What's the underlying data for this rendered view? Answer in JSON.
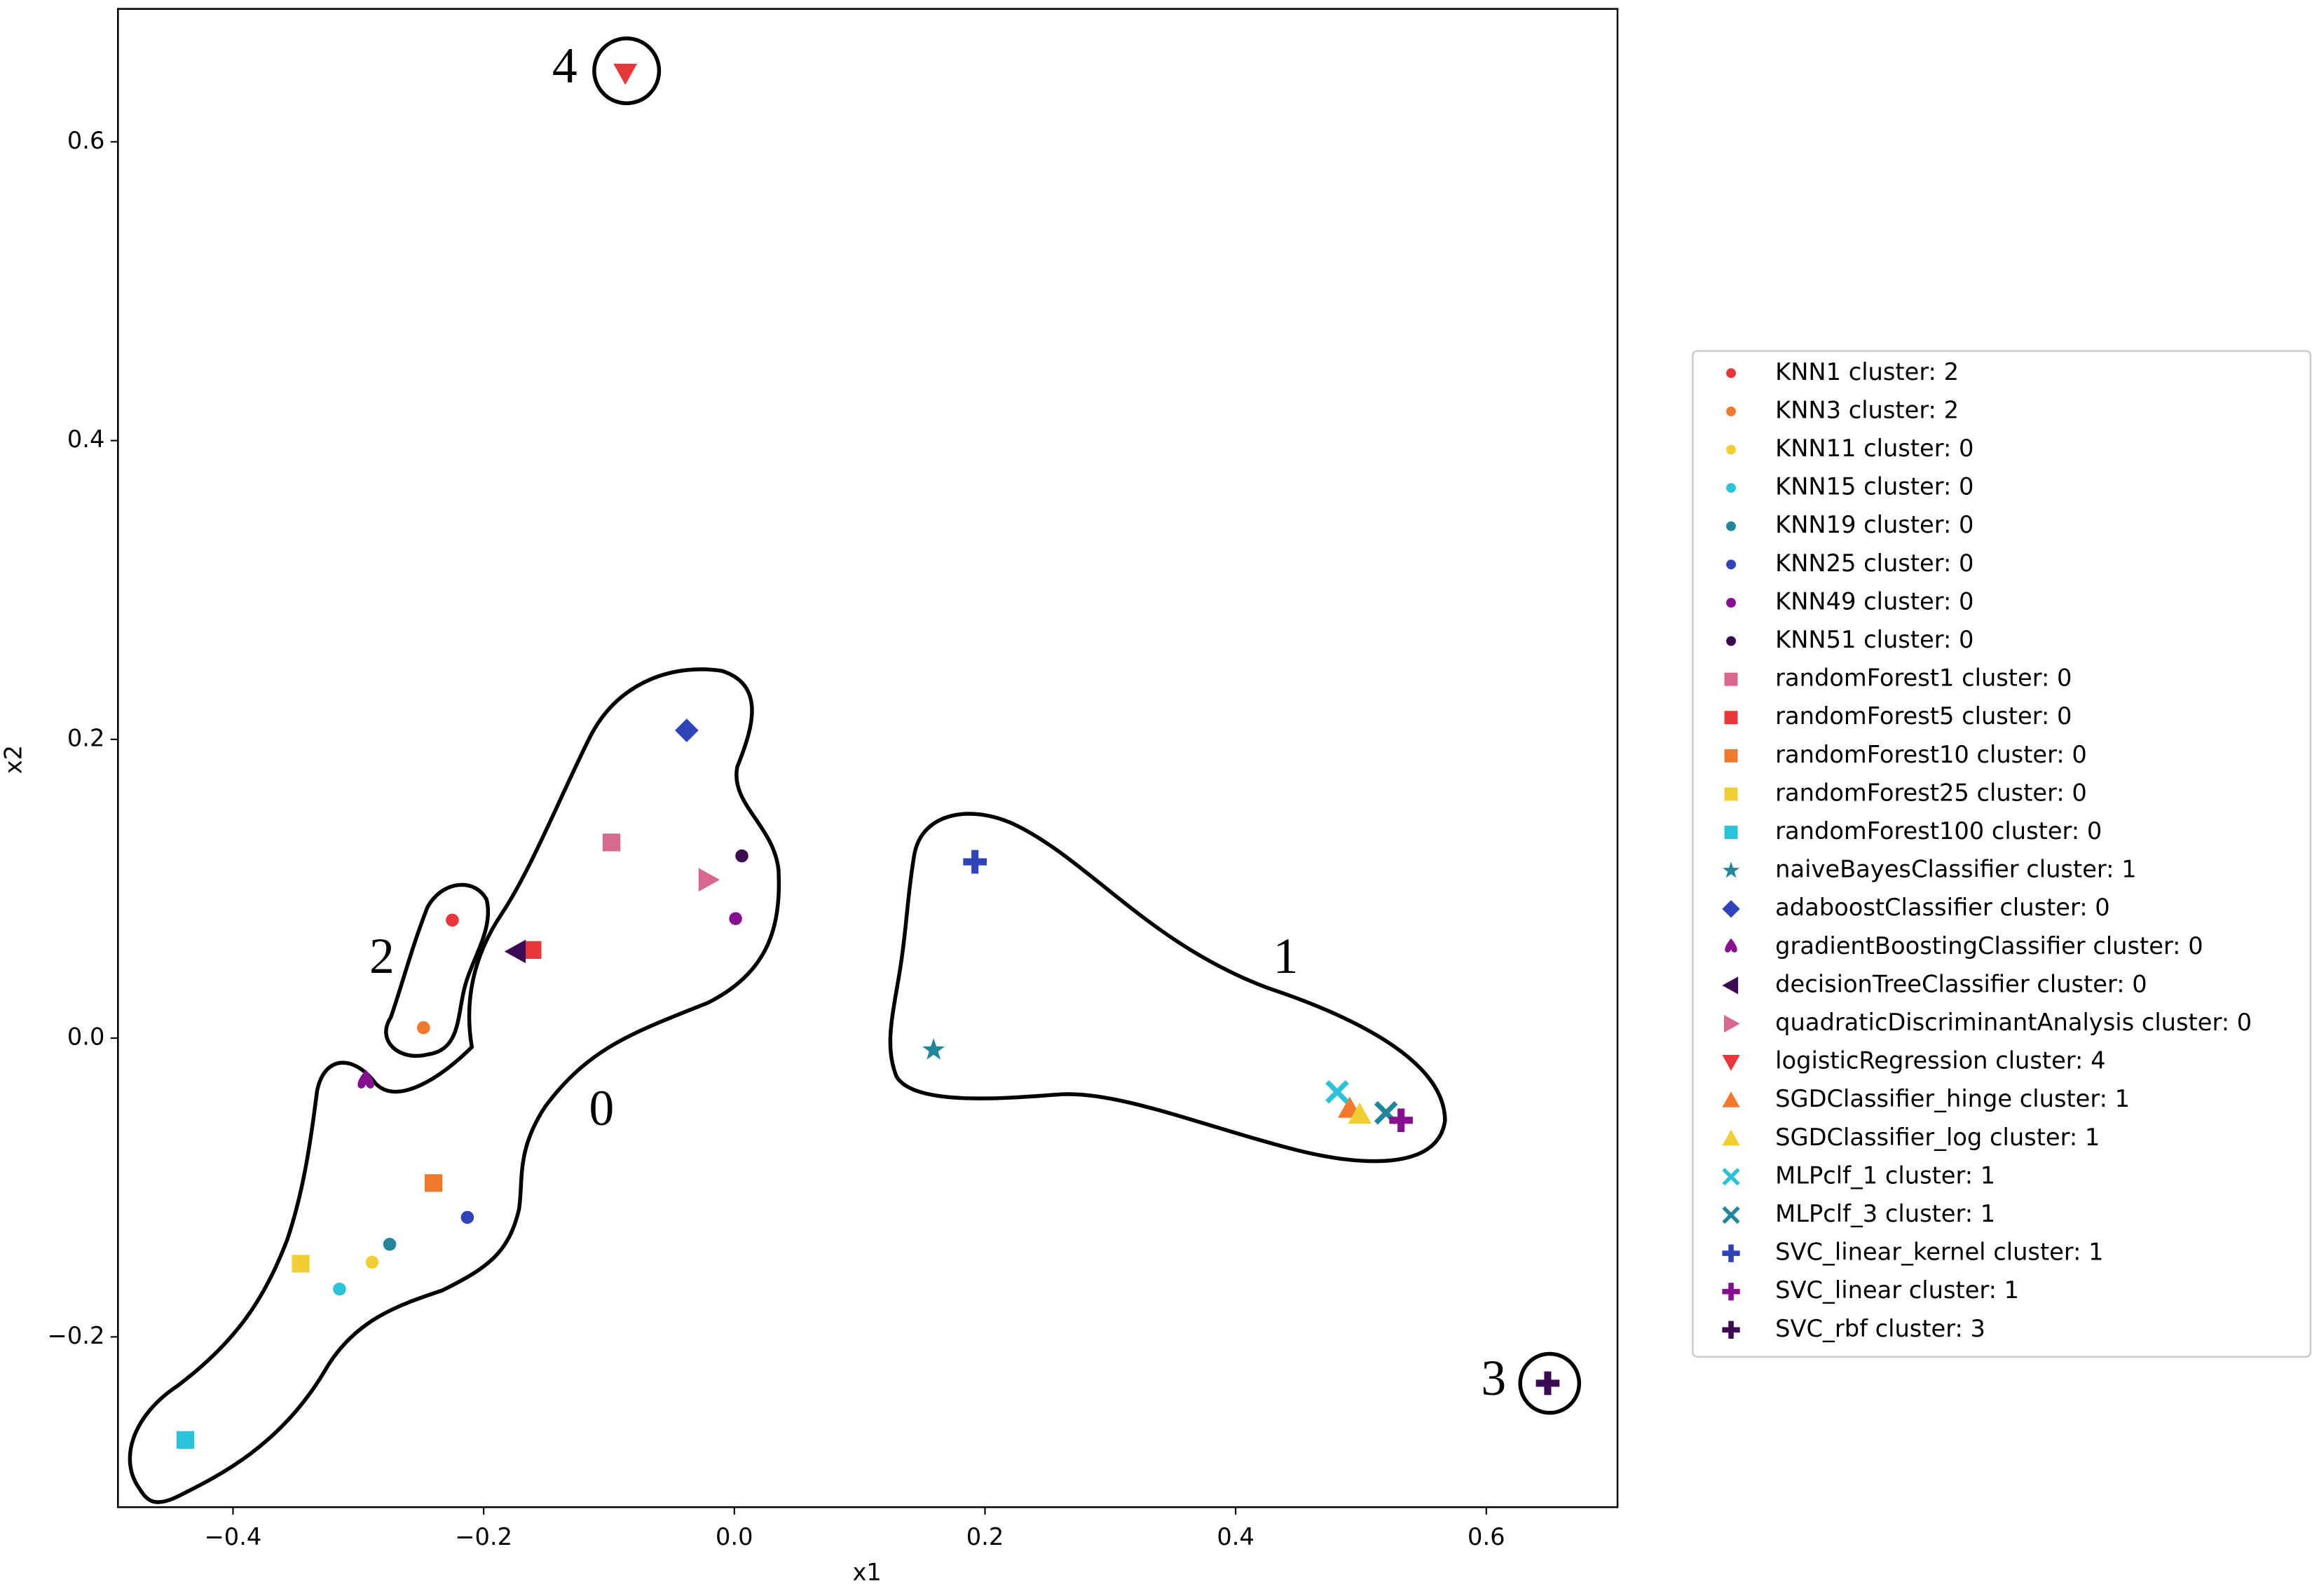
{
  "chart_data": {
    "type": "scatter",
    "xlabel": "x1",
    "ylabel": "x2",
    "xlim": [
      -0.4918,
      0.7047
    ],
    "ylim": [
      -0.314,
      0.689
    ],
    "xticks": [
      {
        "value": -0.4,
        "label": "−0.4"
      },
      {
        "value": -0.2,
        "label": "−0.2"
      },
      {
        "value": 0,
        "label": "0.0"
      },
      0.2,
      0.4,
      0.6
    ],
    "yticks": [
      {
        "value": -0.2,
        "label": "−0.2"
      },
      {
        "value": 0,
        "label": "0.0"
      },
      0.2,
      0.4,
      0.6
    ],
    "grid": false,
    "legend": "right",
    "annotations": [
      "0",
      "1",
      "2",
      "3",
      "4"
    ],
    "series": [
      {
        "name": "KNN1 cluster: 2",
        "color": "#e8363a",
        "marker": "o",
        "x": [
          -0.225
        ],
        "values": [
          0.079
        ]
      },
      {
        "name": "KNN3 cluster: 2",
        "color": "#ef7a2e",
        "marker": "o",
        "x": [
          -0.248
        ],
        "values": [
          0.007
        ]
      },
      {
        "name": "KNN11 cluster: 0",
        "color": "#f1cf33",
        "marker": "o",
        "x": [
          -0.289
        ],
        "values": [
          -0.15
        ]
      },
      {
        "name": "KNN15 cluster: 0",
        "color": "#2bc3d8",
        "marker": "o",
        "x": [
          -0.315
        ],
        "values": [
          -0.168
        ]
      },
      {
        "name": "KNN19 cluster: 0",
        "color": "#23879b",
        "marker": "o",
        "x": [
          -0.275
        ],
        "values": [
          -0.138
        ]
      },
      {
        "name": "KNN25 cluster: 0",
        "color": "#2f44b8",
        "marker": "o",
        "x": [
          -0.213
        ],
        "values": [
          -0.12
        ]
      },
      {
        "name": "KNN49 cluster: 0",
        "color": "#86108f",
        "marker": "o",
        "x": [
          0.001
        ],
        "values": [
          0.08
        ]
      },
      {
        "name": "KNN51 cluster: 0",
        "color": "#3c0a52",
        "marker": "o",
        "x": [
          0.006
        ],
        "values": [
          0.122
        ]
      },
      {
        "name": "randomForest1 cluster: 0",
        "color": "#d8688e",
        "marker": "s",
        "x": [
          -0.098
        ],
        "values": [
          0.131
        ]
      },
      {
        "name": "randomForest5 cluster: 0",
        "color": "#e8363a",
        "marker": "s",
        "x": [
          -0.161
        ],
        "values": [
          0.059
        ]
      },
      {
        "name": "randomForest10 cluster: 0",
        "color": "#ef7a2e",
        "marker": "s",
        "x": [
          -0.24
        ],
        "values": [
          -0.097
        ]
      },
      {
        "name": "randomForest25 cluster: 0",
        "color": "#f1cf33",
        "marker": "s",
        "x": [
          -0.346
        ],
        "values": [
          -0.151
        ]
      },
      {
        "name": "randomForest100 cluster: 0",
        "color": "#2bc3d8",
        "marker": "s",
        "x": [
          -0.438
        ],
        "values": [
          -0.269
        ]
      },
      {
        "name": "naiveBayesClassifier cluster: 1",
        "color": "#23879b",
        "marker": "*",
        "x": [
          0.159
        ],
        "values": [
          -0.008
        ]
      },
      {
        "name": "adaboostClassifier cluster: 0",
        "color": "#2f44b8",
        "marker": "D",
        "x": [
          -0.038
        ],
        "values": [
          0.206
        ]
      },
      {
        "name": "gradientBoostingClassifier cluster: 0",
        "color": "#86108f",
        "marker": "heart",
        "x": [
          -0.294
        ],
        "values": [
          -0.029
        ]
      },
      {
        "name": "decisionTreeClassifier cluster: 0",
        "color": "#3c0a52",
        "marker": "<",
        "x": [
          -0.174
        ],
        "values": [
          0.058
        ]
      },
      {
        "name": "quadraticDiscriminantAnalysis cluster: 0",
        "color": "#d8688e",
        "marker": ">",
        "x": [
          -0.021
        ],
        "values": [
          0.106
        ]
      },
      {
        "name": "logisticRegression cluster: 4",
        "color": "#e8363a",
        "marker": "v",
        "x": [
          -0.087
        ],
        "values": [
          0.646
        ]
      },
      {
        "name": "SGDClassifier_hinge cluster: 1",
        "color": "#ef7a2e",
        "marker": "^",
        "x": [
          0.491
        ],
        "values": [
          -0.047
        ]
      },
      {
        "name": "SGDClassifier_log cluster: 1",
        "color": "#f1cf33",
        "marker": "^",
        "x": [
          0.499
        ],
        "values": [
          -0.051
        ]
      },
      {
        "name": "MLPclf_1 cluster: 1",
        "color": "#2bc3d8",
        "marker": "X",
        "x": [
          0.481
        ],
        "values": [
          -0.036
        ]
      },
      {
        "name": "MLPclf_3 cluster: 1",
        "color": "#23879b",
        "marker": "X",
        "x": [
          0.52
        ],
        "values": [
          -0.05
        ]
      },
      {
        "name": "SVC_linear_kernel cluster: 1",
        "color": "#2f44b8",
        "marker": "P",
        "x": [
          0.192
        ],
        "values": [
          0.118
        ]
      },
      {
        "name": "SVC_linear cluster: 1",
        "color": "#86108f",
        "marker": "P",
        "x": [
          0.532
        ],
        "values": [
          -0.055
        ]
      },
      {
        "name": "SVC_rbf cluster: 3",
        "color": "#3c0a52",
        "marker": "P",
        "x": [
          0.649
        ],
        "values": [
          -0.231
        ]
      }
    ]
  }
}
